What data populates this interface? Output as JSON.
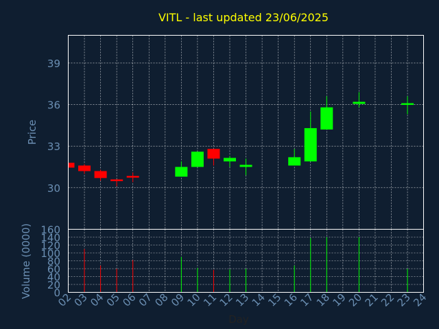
{
  "chart_data": [
    {
      "type": "candlestick",
      "title": "VITL - last updated 23/06/2025",
      "ylabel": "Price",
      "ylim": [
        27,
        41
      ],
      "yticks": [
        30,
        33,
        36,
        39
      ],
      "xticks": [
        "02",
        "03",
        "04",
        "05",
        "06",
        "07",
        "08",
        "09",
        "10",
        "11",
        "12",
        "13",
        "14",
        "15",
        "16",
        "17",
        "18",
        "19",
        "20",
        "21",
        "22",
        "23",
        "24"
      ],
      "candles": [
        {
          "day": "02",
          "open": 31.8,
          "close": 31.45,
          "high": 31.8,
          "low": 31.45
        },
        {
          "day": "03",
          "open": 31.6,
          "close": 31.2,
          "high": 31.7,
          "low": 31.0
        },
        {
          "day": "04",
          "open": 31.2,
          "close": 30.7,
          "high": 31.3,
          "low": 30.5
        },
        {
          "day": "05",
          "open": 30.6,
          "close": 30.5,
          "high": 30.6,
          "low": 30.1
        },
        {
          "day": "06",
          "open": 30.85,
          "close": 30.8,
          "high": 31.1,
          "low": 30.4
        },
        {
          "day": "09",
          "open": 30.8,
          "close": 31.5,
          "high": 31.9,
          "low": 30.8
        },
        {
          "day": "10",
          "open": 31.5,
          "close": 32.6,
          "high": 32.6,
          "low": 31.5
        },
        {
          "day": "11",
          "open": 32.8,
          "close": 32.1,
          "high": 32.8,
          "low": 31.6
        },
        {
          "day": "12",
          "open": 31.9,
          "close": 32.15,
          "high": 32.3,
          "low": 31.5
        },
        {
          "day": "13",
          "open": 31.5,
          "close": 31.65,
          "high": 32.1,
          "low": 30.9
        },
        {
          "day": "16",
          "open": 31.6,
          "close": 32.2,
          "high": 32.8,
          "low": 31.6
        },
        {
          "day": "17",
          "open": 31.9,
          "close": 34.3,
          "high": 35.5,
          "low": 31.9
        },
        {
          "day": "18",
          "open": 34.2,
          "close": 35.8,
          "high": 36.6,
          "low": 34.2
        },
        {
          "day": "20",
          "open": 36.05,
          "close": 36.2,
          "high": 36.9,
          "low": 35.8
        },
        {
          "day": "23",
          "open": 36.0,
          "close": 36.1,
          "high": 36.6,
          "low": 35.3
        }
      ],
      "colors": {
        "up": "#00ff00",
        "down": "#ff0000"
      },
      "grid": true
    },
    {
      "type": "bar",
      "xlabel": "Day",
      "ylabel": "Volume (0000)",
      "ylim": [
        0,
        160
      ],
      "yticks": [
        0,
        20,
        40,
        60,
        80,
        100,
        120,
        140,
        160
      ],
      "bars": [
        {
          "day": "03",
          "value": 110,
          "dir": "down"
        },
        {
          "day": "04",
          "value": 68,
          "dir": "down"
        },
        {
          "day": "05",
          "value": 60,
          "dir": "down"
        },
        {
          "day": "06",
          "value": 82,
          "dir": "down"
        },
        {
          "day": "09",
          "value": 90,
          "dir": "up"
        },
        {
          "day": "10",
          "value": 62,
          "dir": "up"
        },
        {
          "day": "11",
          "value": 57,
          "dir": "down"
        },
        {
          "day": "12",
          "value": 58,
          "dir": "up"
        },
        {
          "day": "13",
          "value": 60,
          "dir": "up"
        },
        {
          "day": "16",
          "value": 68,
          "dir": "up"
        },
        {
          "day": "17",
          "value": 138,
          "dir": "up"
        },
        {
          "day": "18",
          "value": 140,
          "dir": "up"
        },
        {
          "day": "20",
          "value": 140,
          "dir": "up"
        },
        {
          "day": "23",
          "value": 60,
          "dir": "up"
        }
      ],
      "grid": true
    }
  ],
  "colors": {
    "background": "#0f1e30",
    "title": "#ffff00",
    "axis_text": "#6b8fb3",
    "frame": "#ffffff",
    "grid": "#ffffff"
  }
}
